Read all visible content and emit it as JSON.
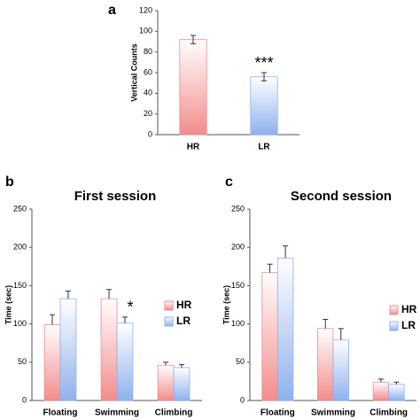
{
  "chart_data": [
    {
      "type": "bar",
      "panel_label": "a",
      "ylabel": "Vertical Counts",
      "categories": [
        "HR",
        "LR"
      ],
      "values": [
        92,
        56
      ],
      "errors": [
        4,
        4
      ],
      "colors": [
        "#f28c8c",
        "#8fb1ec"
      ],
      "ylim": [
        0,
        120
      ],
      "yticks": [
        0,
        20,
        40,
        60,
        80,
        100,
        120
      ],
      "annotations": [
        {
          "text": "***",
          "x": "LR"
        }
      ]
    },
    {
      "type": "bar",
      "panel_label": "b",
      "title": "First session",
      "ylabel": "Time (sec)",
      "categories": [
        "Floating",
        "Swimming",
        "Climbing"
      ],
      "series": [
        {
          "name": "HR",
          "color": "#f28c8c",
          "values": [
            99,
            133,
            46
          ],
          "errors": [
            13,
            12,
            4
          ]
        },
        {
          "name": "LR",
          "color": "#8fb1ec",
          "values": [
            133,
            101,
            43
          ],
          "errors": [
            10,
            8,
            4
          ]
        }
      ],
      "ylim": [
        0,
        250
      ],
      "yticks": [
        0,
        50,
        100,
        150,
        200,
        250
      ],
      "annotations": [
        {
          "text": "*",
          "x": "Swimming",
          "series": "LR"
        }
      ]
    },
    {
      "type": "bar",
      "panel_label": "c",
      "title": "Second session",
      "ylabel": "Time (sec)",
      "categories": [
        "Floating",
        "Swimming",
        "Climbing"
      ],
      "series": [
        {
          "name": "HR",
          "color": "#f28c8c",
          "values": [
            167,
            94,
            24
          ],
          "errors": [
            11,
            12,
            4
          ]
        },
        {
          "name": "LR",
          "color": "#8fb1ec",
          "values": [
            186,
            79,
            21
          ],
          "errors": [
            16,
            15,
            3
          ]
        }
      ],
      "ylim": [
        0,
        250
      ],
      "yticks": [
        0,
        50,
        100,
        150,
        200,
        250
      ]
    }
  ]
}
